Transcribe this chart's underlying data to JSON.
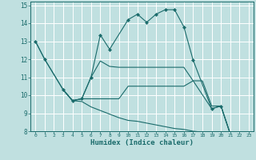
{
  "title": "",
  "xlabel": "Humidex (Indice chaleur)",
  "bg_color": "#c0e0e0",
  "grid_color": "#ffffff",
  "line_color": "#1a6b6b",
  "xlim": [
    -0.5,
    23.5
  ],
  "ylim": [
    8,
    15.2
  ],
  "x_ticks": [
    0,
    1,
    2,
    3,
    4,
    5,
    6,
    7,
    8,
    9,
    10,
    11,
    12,
    13,
    14,
    15,
    16,
    17,
    18,
    19,
    20,
    21,
    22,
    23
  ],
  "y_ticks": [
    8,
    9,
    10,
    11,
    12,
    13,
    14,
    15
  ],
  "line1_x": [
    0,
    1,
    3,
    4,
    5,
    6,
    7,
    8,
    10,
    11,
    12,
    13,
    14,
    15,
    16,
    17,
    19,
    20,
    21,
    22,
    23
  ],
  "line1_y": [
    13,
    12,
    10.3,
    9.7,
    9.8,
    11.0,
    13.35,
    12.55,
    14.2,
    14.5,
    14.05,
    14.5,
    14.75,
    14.75,
    13.8,
    11.95,
    9.25,
    9.4,
    7.85,
    7.8,
    7.7
  ],
  "line2_x": [
    0,
    1,
    3,
    4,
    5,
    6,
    7,
    8,
    9,
    10,
    11,
    12,
    13,
    14,
    15,
    16,
    17,
    19,
    20,
    21,
    22,
    23
  ],
  "line2_y": [
    13,
    12,
    10.3,
    9.7,
    9.8,
    11.0,
    11.9,
    11.6,
    11.55,
    11.55,
    11.55,
    11.55,
    11.55,
    11.55,
    11.55,
    11.55,
    10.8,
    9.25,
    9.4,
    7.85,
    7.8,
    7.7
  ],
  "line3_x": [
    3,
    4,
    5,
    6,
    7,
    8,
    9,
    10,
    11,
    12,
    13,
    14,
    15,
    16,
    17,
    18,
    19,
    20,
    21,
    22,
    23
  ],
  "line3_y": [
    10.3,
    9.7,
    9.8,
    9.8,
    9.8,
    9.8,
    9.8,
    10.5,
    10.5,
    10.5,
    10.5,
    10.5,
    10.5,
    10.5,
    10.8,
    10.8,
    9.4,
    9.4,
    7.85,
    7.8,
    7.7
  ],
  "line4_x": [
    3,
    4,
    5,
    6,
    7,
    8,
    9,
    10,
    11,
    12,
    13,
    14,
    15,
    16,
    17,
    18,
    19,
    20,
    21,
    22,
    23
  ],
  "line4_y": [
    10.3,
    9.7,
    9.65,
    9.35,
    9.15,
    8.95,
    8.75,
    8.6,
    8.55,
    8.45,
    8.35,
    8.25,
    8.15,
    8.1,
    8.0,
    7.95,
    7.9,
    7.85,
    7.8,
    7.75,
    7.7
  ]
}
